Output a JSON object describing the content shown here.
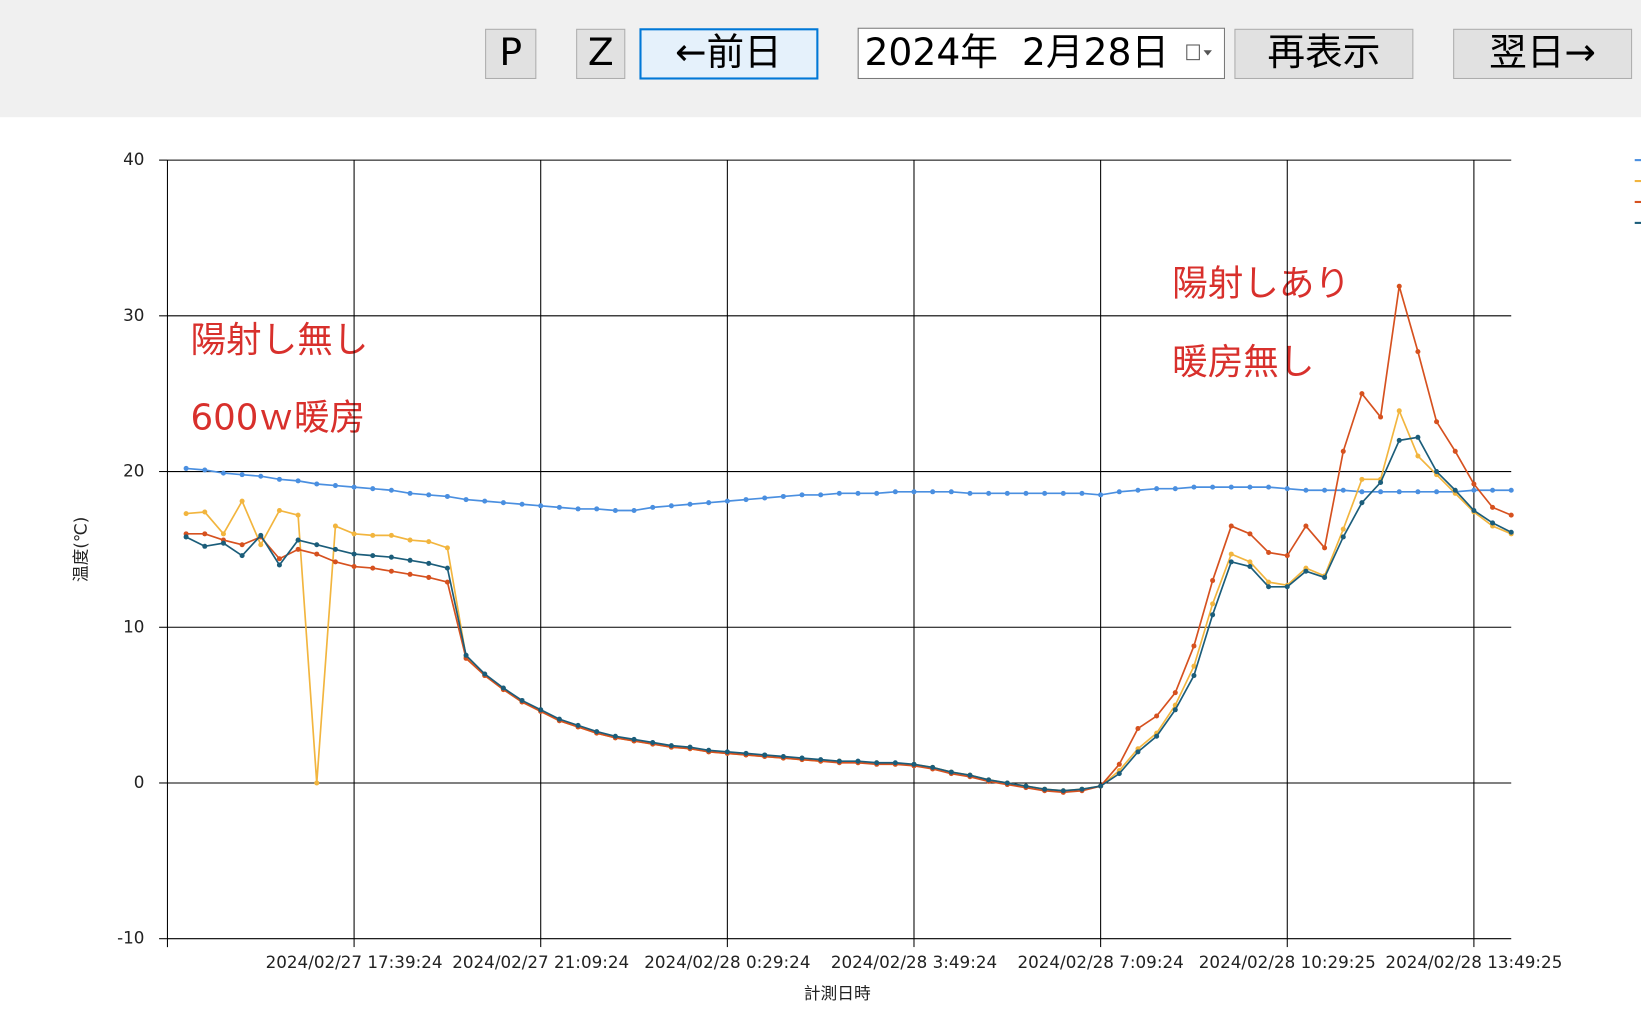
{
  "toolbar": {
    "buttons": [
      "P",
      "Z",
      "←前日"
    ],
    "date": "2024年  2月28日",
    "refresh": "再表示",
    "next": "翌日→"
  },
  "chart_data": {
    "type": "line",
    "x_label": "計測日時",
    "y_label": "温度(℃)",
    "annotations": [
      "陽射し無し",
      "600ｗ暖房",
      "陽射しあり",
      "暖房無し"
    ],
    "ylim": [
      -10,
      40
    ],
    "yticks": [
      -10,
      0,
      10,
      20,
      30,
      40
    ],
    "grid": true,
    "markers": true,
    "categories": [
      null,
      null,
      null,
      null,
      null,
      null,
      null,
      null,
      null,
      "2024/02/27 17:39:24",
      null,
      null,
      null,
      null,
      null,
      null,
      null,
      null,
      null,
      "2024/02/27 21:09:24",
      null,
      null,
      null,
      null,
      null,
      null,
      null,
      null,
      null,
      "2024/02/28 0:29:24",
      null,
      null,
      null,
      null,
      null,
      null,
      null,
      null,
      null,
      "2024/02/28 3:49:24",
      null,
      null,
      null,
      null,
      null,
      null,
      null,
      null,
      null,
      "2024/02/28 7:09:24",
      null,
      null,
      null,
      null,
      null,
      null,
      null,
      null,
      null,
      "2024/02/28 10:29:25",
      null,
      null,
      null,
      null,
      null,
      null,
      null,
      null,
      null,
      "2024/02/28 13:49:25",
      null,
      null
    ],
    "series": [
      {
        "color": "#4a8fe0",
        "values": [
          20.2,
          20.1,
          19.9,
          19.8,
          19.7,
          19.5,
          19.4,
          19.2,
          19.1,
          19.0,
          18.9,
          18.8,
          18.6,
          18.5,
          18.4,
          18.2,
          18.1,
          18.0,
          17.9,
          17.8,
          17.7,
          17.6,
          17.6,
          17.5,
          17.5,
          17.7,
          17.8,
          17.9,
          18.0,
          18.1,
          18.2,
          18.3,
          18.4,
          18.5,
          18.5,
          18.6,
          18.6,
          18.6,
          18.7,
          18.7,
          18.7,
          18.7,
          18.6,
          18.6,
          18.6,
          18.6,
          18.6,
          18.6,
          18.6,
          18.5,
          18.7,
          18.8,
          18.9,
          18.9,
          19.0,
          19.0,
          19.0,
          19.0,
          19.0,
          18.9,
          18.8,
          18.8,
          18.8,
          18.7,
          18.7,
          18.7,
          18.7,
          18.7,
          18.7,
          18.8,
          18.8,
          18.8
        ]
      },
      {
        "color": "#f2b53e",
        "values": [
          17.3,
          17.4,
          16.0,
          18.1,
          15.3,
          17.5,
          17.2,
          0.0,
          16.5,
          16.0,
          15.9,
          15.9,
          15.6,
          15.5,
          15.1,
          8.1,
          6.9,
          6.0,
          5.2,
          4.6,
          4.0,
          3.6,
          3.2,
          2.9,
          2.7,
          2.5,
          2.3,
          2.2,
          2.0,
          1.9,
          1.8,
          1.7,
          1.6,
          1.5,
          1.4,
          1.4,
          1.3,
          1.3,
          1.2,
          1.2,
          1.0,
          0.7,
          0.5,
          0.2,
          0.0,
          -0.2,
          -0.4,
          -0.5,
          -0.4,
          -0.2,
          0.8,
          2.2,
          3.2,
          5.0,
          7.5,
          11.5,
          14.7,
          14.2,
          12.9,
          12.7,
          13.8,
          13.3,
          16.3,
          19.5,
          19.5,
          23.9,
          21.0,
          19.8,
          18.6,
          17.4,
          16.5,
          16.0
        ]
      },
      {
        "color": "#d6511f",
        "values": [
          16.0,
          16.0,
          15.6,
          15.3,
          15.8,
          14.4,
          15.0,
          14.7,
          14.2,
          13.9,
          13.8,
          13.6,
          13.4,
          13.2,
          12.9,
          8.0,
          6.9,
          6.0,
          5.2,
          4.6,
          4.0,
          3.6,
          3.2,
          2.9,
          2.7,
          2.5,
          2.3,
          2.2,
          2.0,
          1.9,
          1.8,
          1.7,
          1.6,
          1.5,
          1.4,
          1.3,
          1.3,
          1.2,
          1.2,
          1.1,
          0.9,
          0.6,
          0.4,
          0.1,
          -0.1,
          -0.3,
          -0.5,
          -0.6,
          -0.5,
          -0.2,
          1.2,
          3.5,
          4.3,
          5.8,
          8.8,
          13.0,
          16.5,
          16.0,
          14.8,
          14.6,
          16.5,
          15.1,
          21.3,
          25.0,
          23.5,
          31.9,
          27.7,
          23.2,
          21.3,
          19.2,
          17.7,
          17.2
        ]
      },
      {
        "color": "#1b5d7a",
        "values": [
          15.8,
          15.2,
          15.4,
          14.6,
          15.9,
          14.0,
          15.6,
          15.3,
          15.0,
          14.7,
          14.6,
          14.5,
          14.3,
          14.1,
          13.8,
          8.2,
          7.0,
          6.1,
          5.3,
          4.7,
          4.1,
          3.7,
          3.3,
          3.0,
          2.8,
          2.6,
          2.4,
          2.3,
          2.1,
          2.0,
          1.9,
          1.8,
          1.7,
          1.6,
          1.5,
          1.4,
          1.4,
          1.3,
          1.3,
          1.2,
          1.0,
          0.7,
          0.5,
          0.2,
          0.0,
          -0.2,
          -0.4,
          -0.5,
          -0.4,
          -0.2,
          0.6,
          2.0,
          3.0,
          4.7,
          6.9,
          10.8,
          14.2,
          13.9,
          12.6,
          12.6,
          13.6,
          13.2,
          15.8,
          18.0,
          19.3,
          22.0,
          22.2,
          20.0,
          18.8,
          17.5,
          16.7,
          16.1
        ]
      }
    ]
  }
}
